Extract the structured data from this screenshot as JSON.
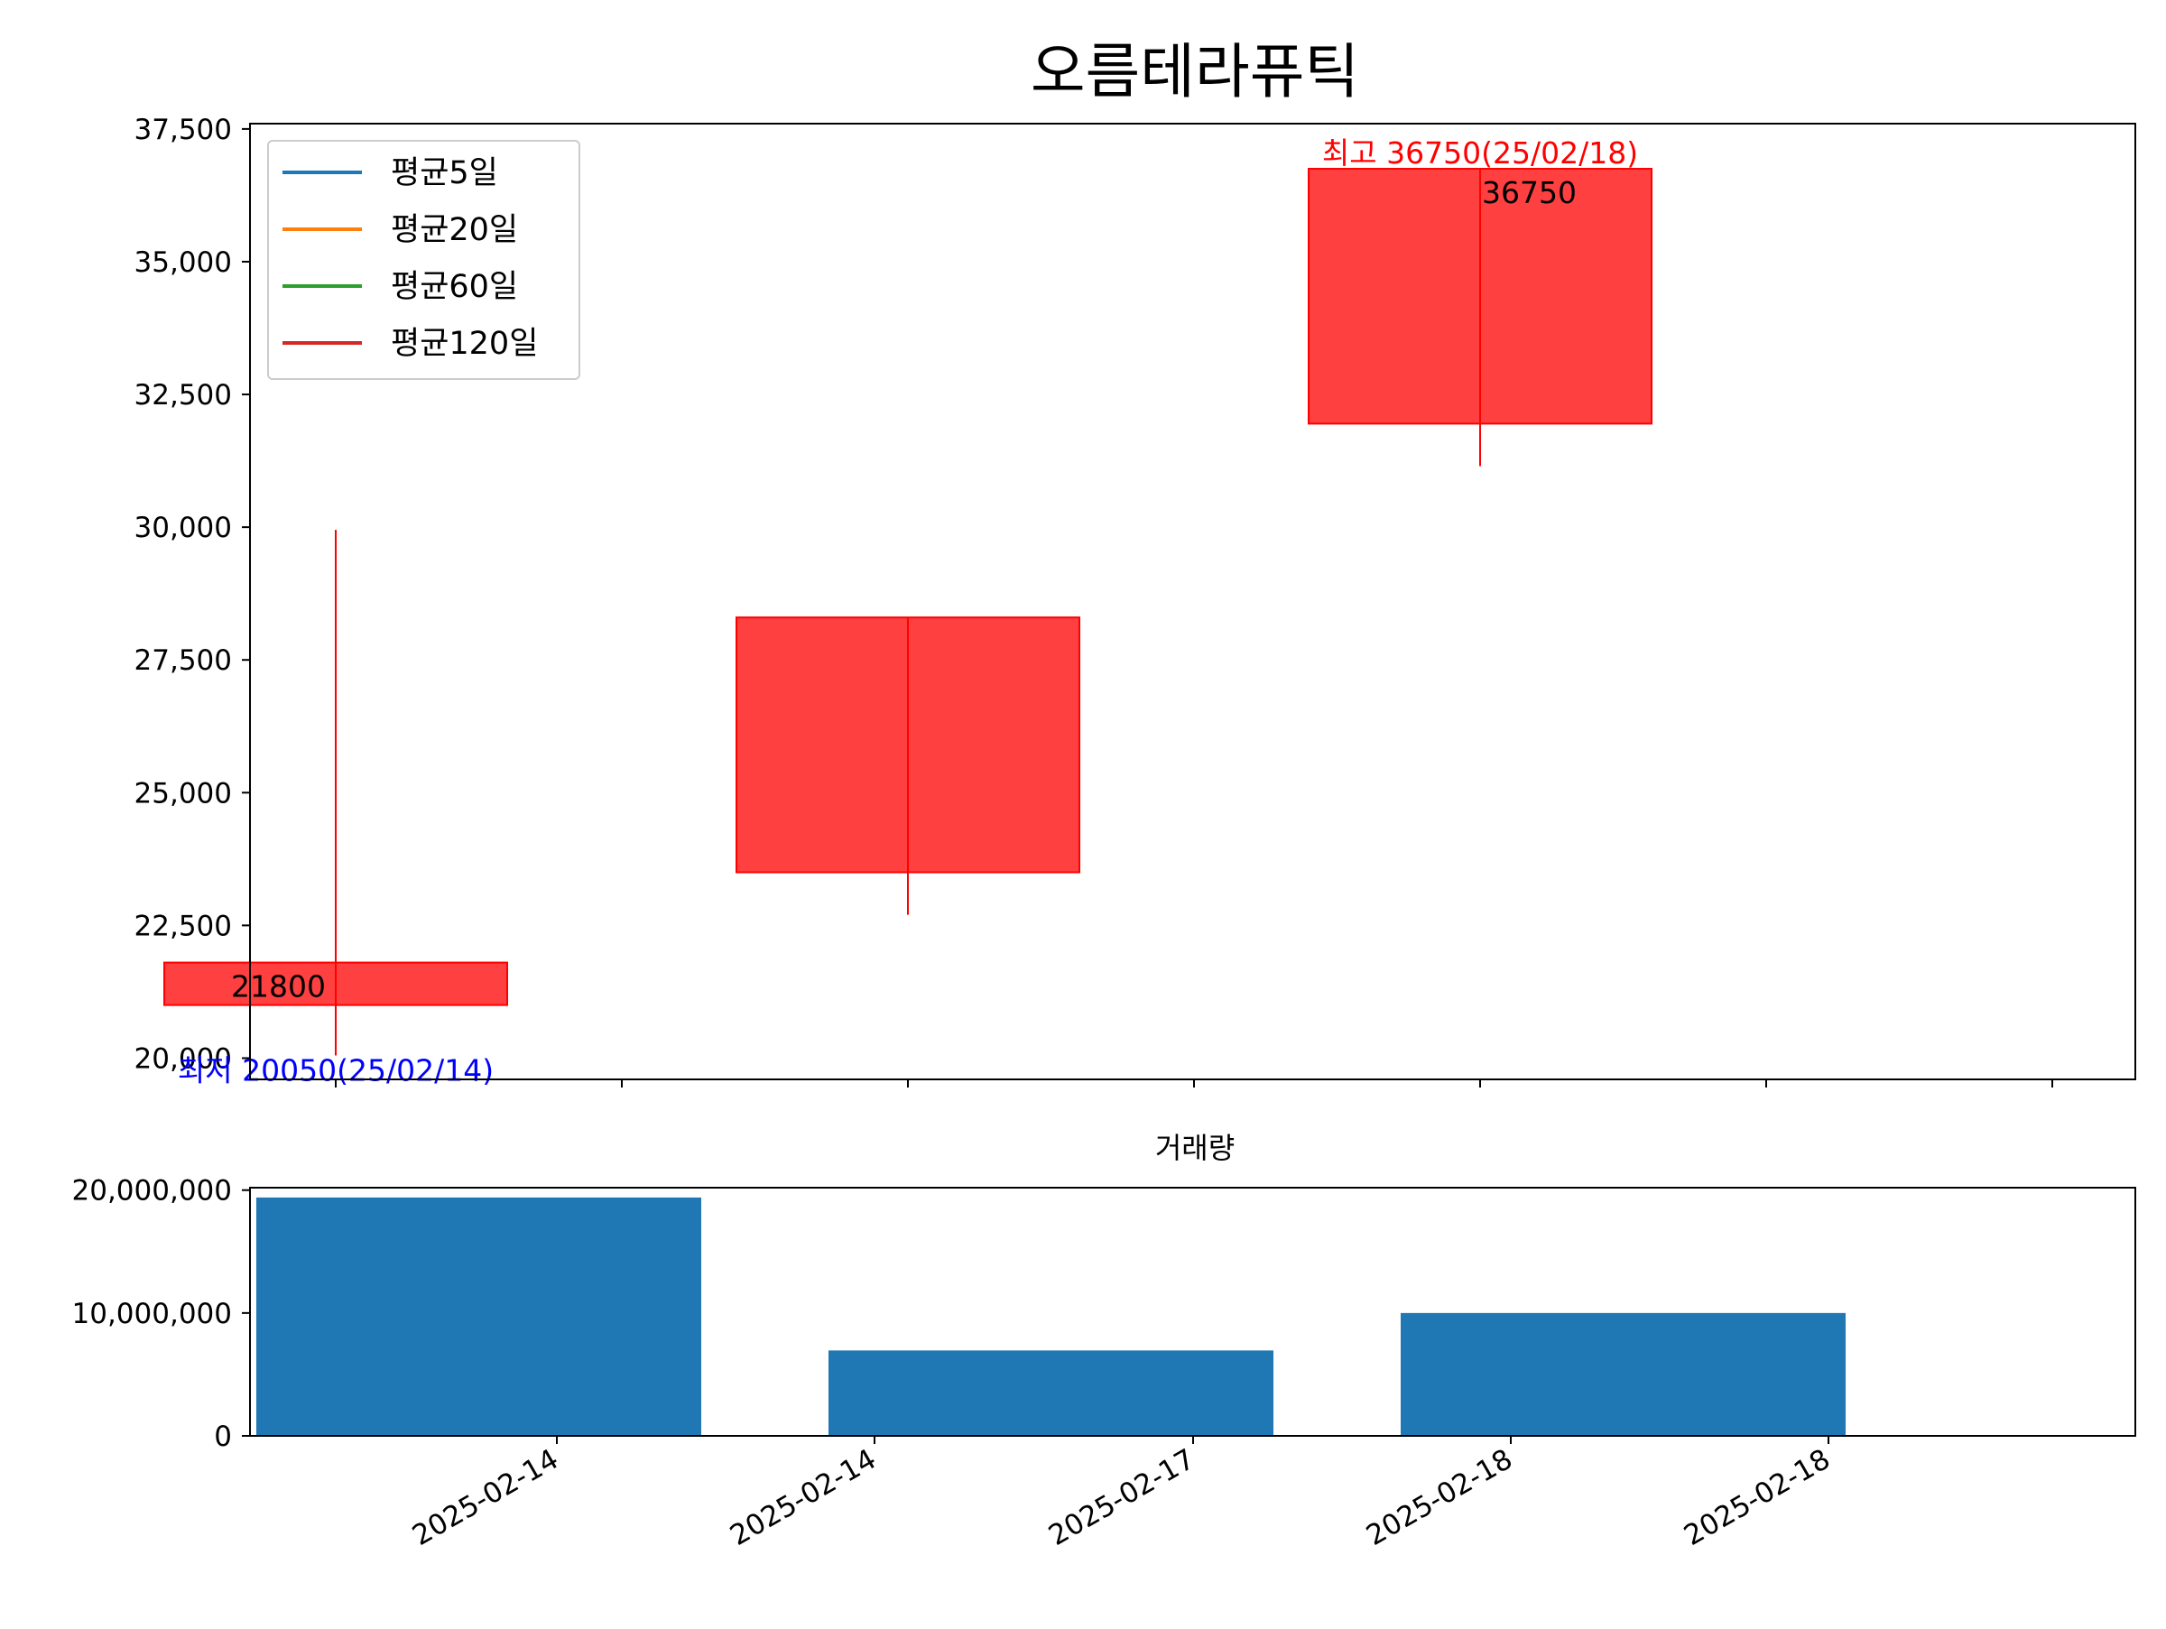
{
  "chart_data": [
    {
      "type": "candlestick",
      "title": "오름테라퓨틱",
      "xlabel": "",
      "ylabel": "",
      "ylim": [
        19600,
        37600
      ],
      "yticks": [
        20000,
        22500,
        25000,
        27500,
        30000,
        32500,
        35000,
        37500
      ],
      "ytick_labels": [
        "20,000",
        "22,500",
        "25,000",
        "27,500",
        "30,000",
        "32,500",
        "35,000",
        "37,500"
      ],
      "grid": false,
      "legend": {
        "placement": "top-left",
        "entries": [
          {
            "label": "평균5일",
            "color": "#1f77b4"
          },
          {
            "label": "평균20일",
            "color": "#ff7f0e"
          },
          {
            "label": "평균60일",
            "color": "#2ca02c"
          },
          {
            "label": "평균120일",
            "color": "#d62728"
          }
        ]
      },
      "candles": [
        {
          "slot": 0,
          "open": 21000,
          "high": 29950,
          "low": 20050,
          "close": 21800
        },
        {
          "slot": 2,
          "open": 23500,
          "high": 28300,
          "low": 22700,
          "close": 28300
        },
        {
          "slot": 4,
          "open": 31950,
          "high": 36750,
          "low": 31150,
          "close": 36750
        }
      ],
      "candle_color": "#ff0000",
      "annotations": [
        {
          "text": "21800",
          "slot": 0,
          "value": 21800,
          "color": "#000000"
        },
        {
          "text": "36750",
          "slot": 4,
          "value": 36750,
          "color": "#000000"
        },
        {
          "text": "최고 36750(25/02/18)",
          "slot": 4,
          "value": 36750,
          "color": "#ff0000"
        },
        {
          "text": "최저 20050(25/02/14)",
          "slot": 0,
          "value": 20050,
          "color": "#0000ff"
        }
      ]
    },
    {
      "type": "bar",
      "title": "거래량",
      "xlabel": "",
      "ylabel": "",
      "ylim": [
        0,
        20200000
      ],
      "yticks": [
        0,
        10000000,
        20000000
      ],
      "ytick_labels": [
        "0",
        "10,000,000",
        "20,000,000"
      ],
      "bar_color": "#1f77b4",
      "series": [
        {
          "slot": 0.5,
          "value": 19400000
        },
        {
          "slot": 2.5,
          "value": 6950000
        },
        {
          "slot": 4.5,
          "value": 10000000
        }
      ],
      "x_tick_labels": [
        "2025-02-14",
        "2025-02-14",
        "2025-02-17",
        "2025-02-18",
        "2025-02-18"
      ]
    }
  ]
}
